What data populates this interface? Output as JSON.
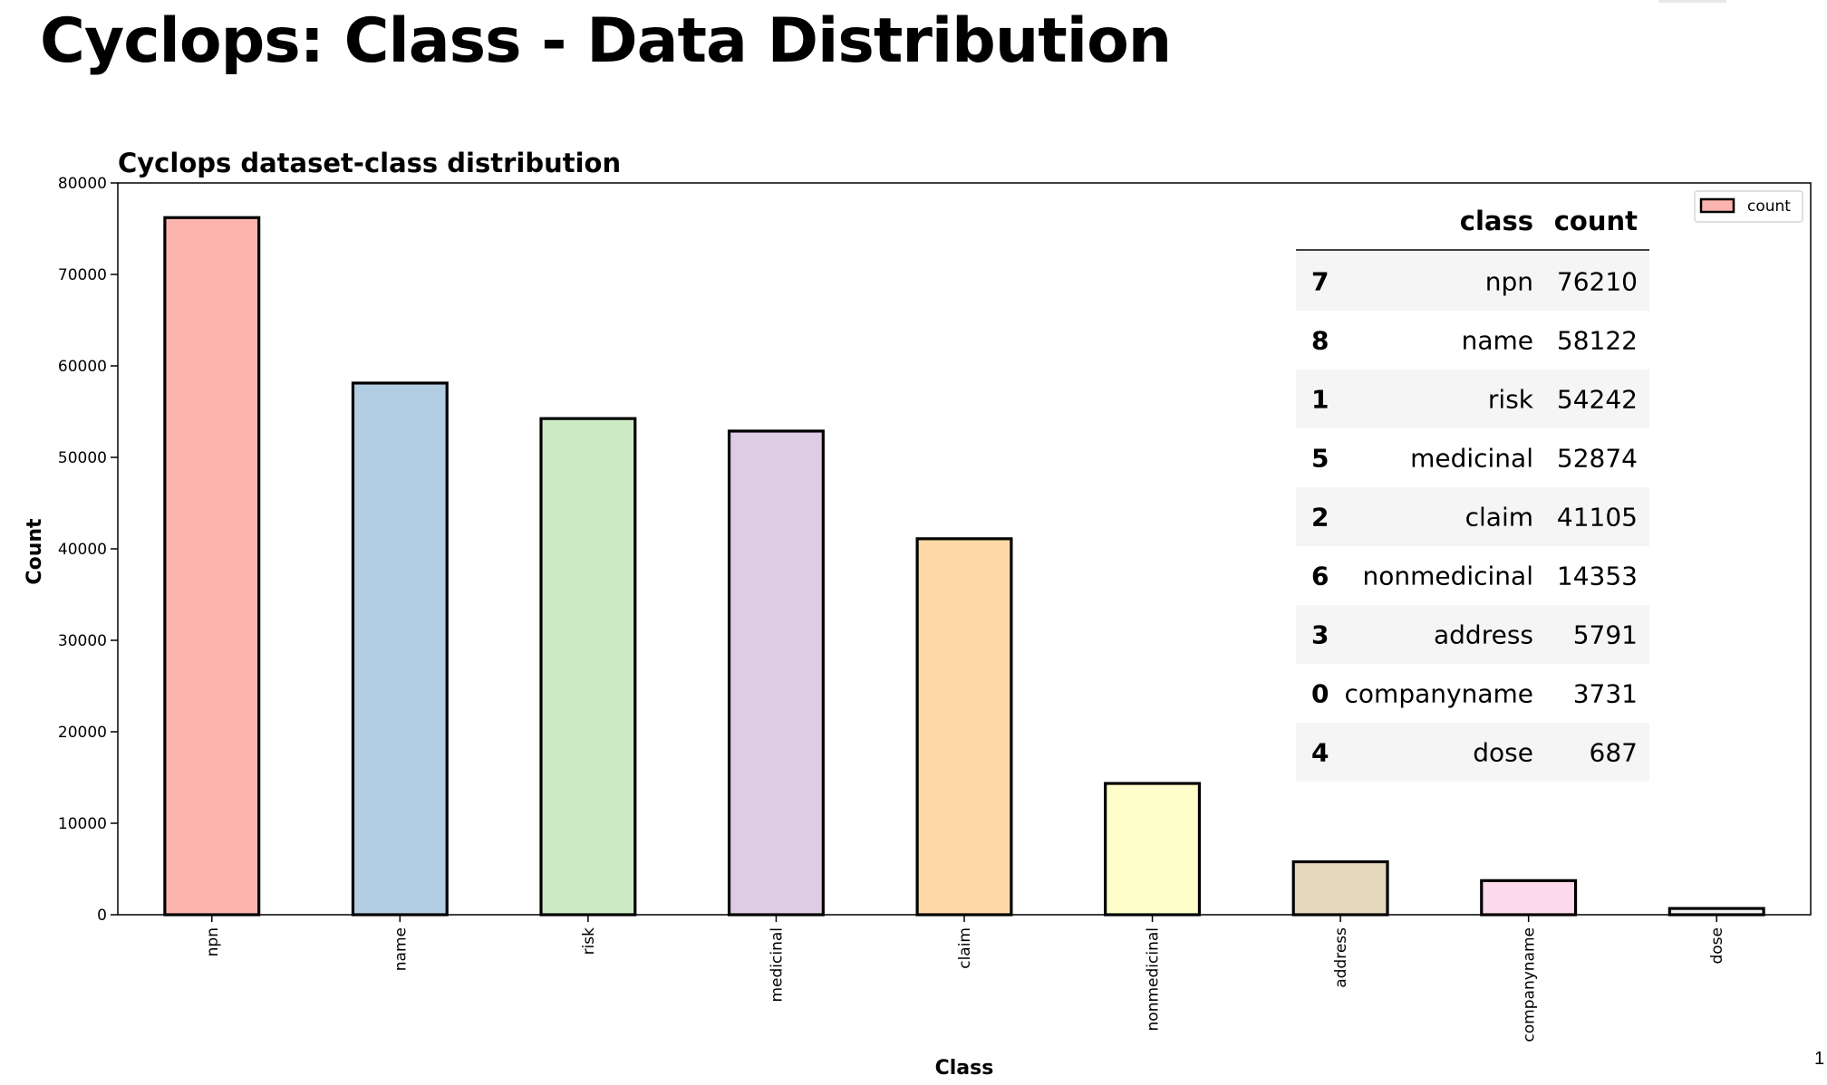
{
  "slide": {
    "title": "Cyclops: Class - Data Distribution",
    "page_number": "1"
  },
  "chart_data": {
    "type": "bar",
    "title": "Cyclops dataset-class distribution",
    "xlabel": "Class",
    "ylabel": "Count",
    "ylim": [
      0,
      80000
    ],
    "yticks": [
      0,
      10000,
      20000,
      30000,
      40000,
      50000,
      60000,
      70000,
      80000
    ],
    "categories": [
      "npn",
      "name",
      "risk",
      "medicinal",
      "claim",
      "nonmedicinal",
      "address",
      "companyname",
      "dose"
    ],
    "series": [
      {
        "name": "count",
        "values": [
          76210,
          58122,
          54242,
          52874,
          41105,
          14353,
          5791,
          3731,
          687
        ]
      }
    ],
    "colors": [
      "#fbb4ae",
      "#b3cde3",
      "#ccebc5",
      "#decbe4",
      "#fed9a6",
      "#ffffcc",
      "#e5d8bd",
      "#fddaec",
      "#f2f2f2"
    ],
    "legend": {
      "position": "top-right",
      "entries": [
        "count"
      ]
    },
    "grid": false
  },
  "table": {
    "columns": [
      "class",
      "count"
    ],
    "rows": [
      {
        "index": "7",
        "class": "npn",
        "count": "76210"
      },
      {
        "index": "8",
        "class": "name",
        "count": "58122"
      },
      {
        "index": "1",
        "class": "risk",
        "count": "54242"
      },
      {
        "index": "5",
        "class": "medicinal",
        "count": "52874"
      },
      {
        "index": "2",
        "class": "claim",
        "count": "41105"
      },
      {
        "index": "6",
        "class": "nonmedicinal",
        "count": "14353"
      },
      {
        "index": "3",
        "class": "address",
        "count": "5791"
      },
      {
        "index": "0",
        "class": "companyname",
        "count": "3731"
      },
      {
        "index": "4",
        "class": "dose",
        "count": "687"
      }
    ]
  }
}
